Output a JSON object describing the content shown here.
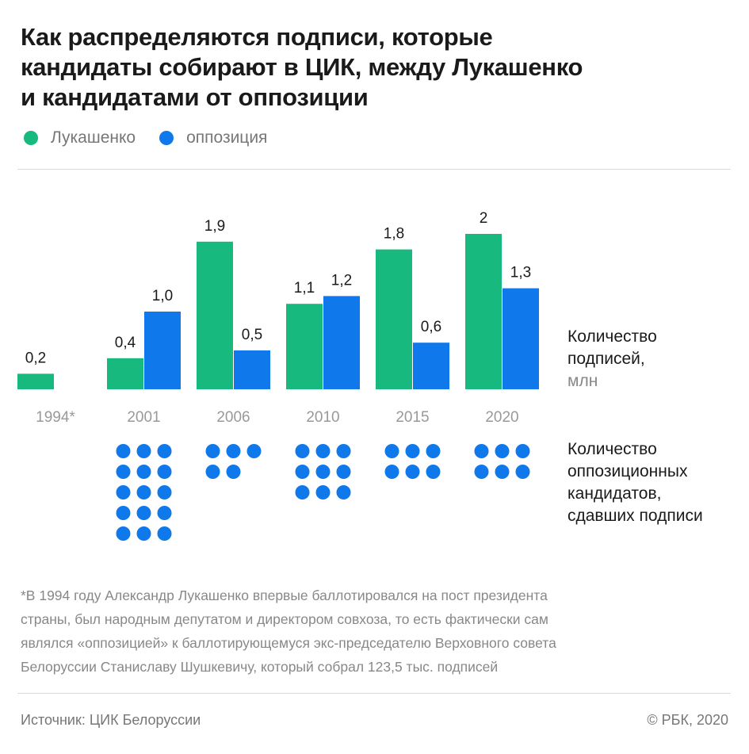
{
  "title_lines": [
    "Как распределяются подписи, которые",
    "кандидаты собирают в ЦИК, между Лукашенко",
    "и кандидатами от оппозиции"
  ],
  "legend": [
    {
      "label": "Лукашенко",
      "color": "#18b97e"
    },
    {
      "label": "оппозиция",
      "color": "#0f78ea"
    }
  ],
  "side_label_signatures": {
    "line1": "Количество",
    "line2": "подписей,",
    "unit": "млн"
  },
  "side_label_candidates": [
    "Количество",
    "оппозиционных",
    "кандидатов,",
    "сдавших подписи"
  ],
  "footnote_lines": [
    "*В 1994 году Александр Лукашенко впервые баллотировался на пост президента",
    "страны, был народным депутатом и директором совхоза, то есть фактически сам",
    "являлся «оппозицией» к баллотирующемуся экс-председателю Верховного совета",
    "Белоруссии Станиславу Шушкевичу, который собрал 123,5 тыс. подписей"
  ],
  "source": "Источник: ЦИК Белоруссии",
  "copyright": "© РБК, 2020",
  "chart_data": {
    "type": "bar",
    "categories": [
      "1994*",
      "2001",
      "2006",
      "2010",
      "2015",
      "2020"
    ],
    "series": [
      {
        "name": "Лукашенко",
        "color": "#18b97e",
        "values": [
          0.2,
          0.4,
          1.9,
          1.1,
          1.8,
          2
        ],
        "labels": [
          "0,2",
          "0,4",
          "1,9",
          "1,1",
          "1,8",
          "2"
        ]
      },
      {
        "name": "оппозиция",
        "color": "#0f78ea",
        "values": [
          null,
          1.0,
          0.5,
          1.2,
          0.6,
          1.3
        ],
        "labels": [
          "",
          "1,0",
          "0,5",
          "1,2",
          "0,6",
          "1,3"
        ]
      }
    ],
    "opposition_candidates": [
      0,
      15,
      5,
      9,
      6,
      6
    ],
    "ylabel": "Количество подписей, млн",
    "ylim": [
      0,
      2
    ],
    "grid": false,
    "legend_position": "top-left"
  }
}
